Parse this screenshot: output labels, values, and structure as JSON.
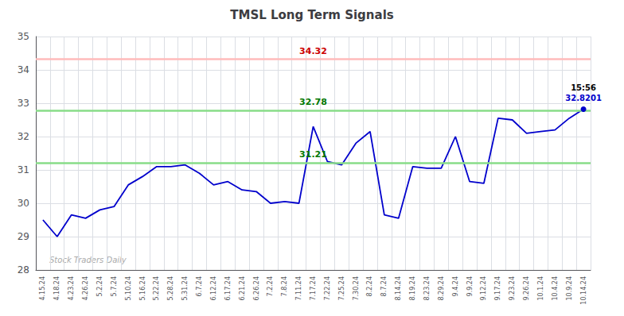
{
  "chart_data": {
    "type": "line",
    "title": "TMSL Long Term Signals",
    "categories": [
      "4.15.24",
      "4.18.24",
      "4.23.24",
      "4.26.24",
      "5.2.24",
      "5.7.24",
      "5.10.24",
      "5.16.24",
      "5.22.24",
      "5.28.24",
      "5.31.24",
      "6.7.24",
      "6.12.24",
      "6.17.24",
      "6.21.24",
      "6.26.24",
      "7.2.24",
      "7.8.24",
      "7.11.24",
      "7.17.24",
      "7.22.24",
      "7.25.24",
      "7.30.24",
      "8.2.24",
      "8.7.24",
      "8.14.24",
      "8.19.24",
      "8.23.24",
      "8.29.24",
      "9.4.24",
      "9.9.24",
      "9.12.24",
      "9.17.24",
      "9.23.24",
      "9.26.24",
      "10.1.24",
      "10.4.24",
      "10.9.24",
      "10.14.24"
    ],
    "values": [
      29.5,
      29.0,
      29.65,
      29.55,
      29.8,
      29.9,
      30.55,
      30.8,
      31.1,
      31.1,
      31.15,
      30.9,
      30.55,
      30.65,
      30.4,
      30.35,
      30.0,
      30.05,
      30.0,
      32.3,
      31.25,
      31.15,
      31.8,
      32.15,
      29.65,
      29.55,
      31.1,
      31.05,
      31.05,
      32.0,
      30.65,
      30.6,
      32.55,
      32.5,
      32.1,
      32.15,
      32.2,
      32.55,
      32.8201
    ],
    "color": "#0000cc",
    "ylim": [
      28,
      35
    ],
    "yticks": [
      28,
      29,
      30,
      31,
      32,
      33,
      34,
      35
    ],
    "grid": true,
    "reference_lines": [
      {
        "value": 34.32,
        "color": "#ffbbbb",
        "label_color": "#cc0000"
      },
      {
        "value": 32.78,
        "color": "#88dd88",
        "label_color": "#007700"
      },
      {
        "value": 31.21,
        "color": "#88dd88",
        "label_color": "#007700"
      }
    ],
    "annotations": [
      {
        "category": "10.14.24",
        "value": 32.8201,
        "marker": "circle",
        "color": "#0000cc",
        "texts": [
          {
            "text": "15:56",
            "color": "#000000"
          },
          {
            "text": "32.8201",
            "color": "#0000cc"
          }
        ]
      }
    ],
    "watermark": {
      "text": "Stock Traders Daily",
      "color": "#aaaaaa"
    }
  }
}
